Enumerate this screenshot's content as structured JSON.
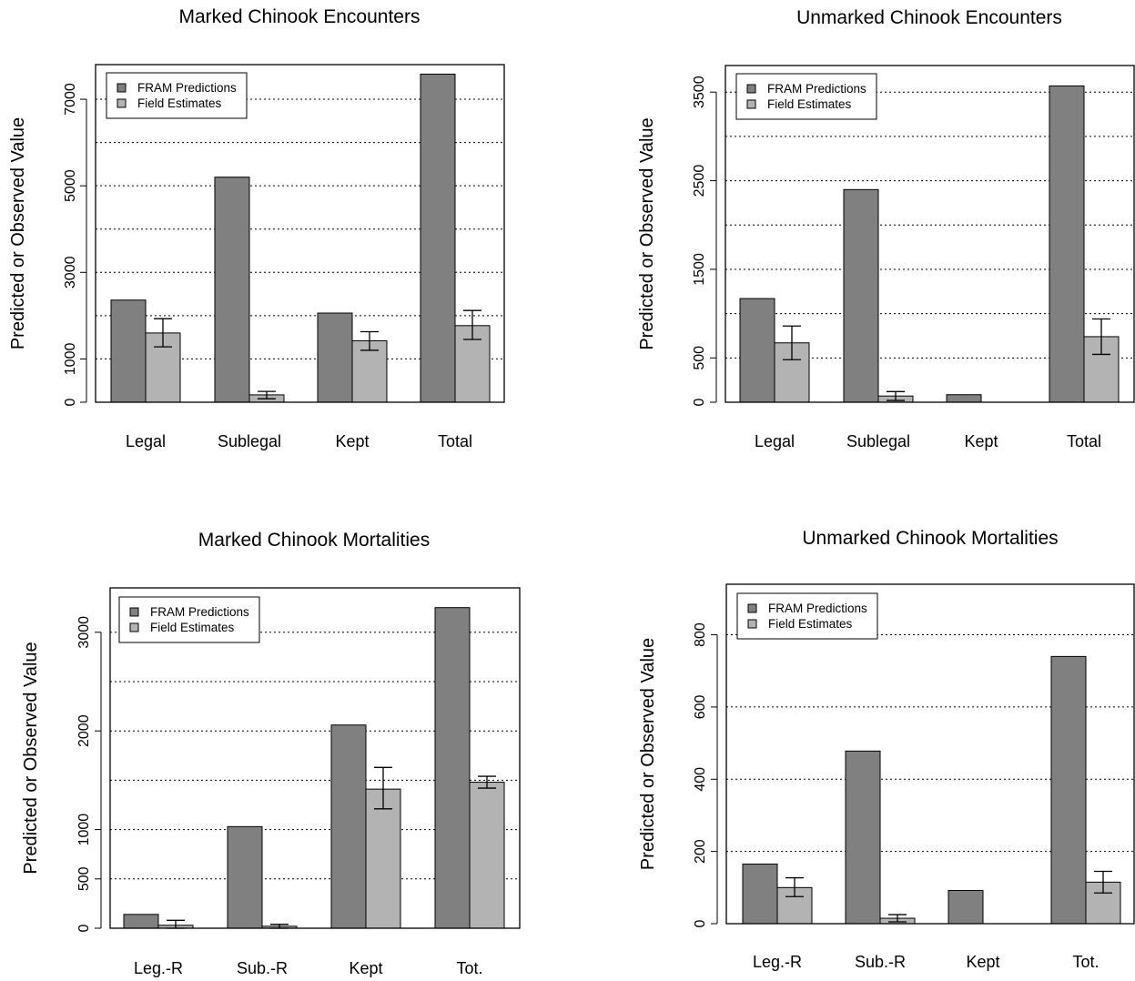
{
  "colors": {
    "fram": "#808080",
    "field": "#b3b3b3",
    "stroke": "#000000",
    "grid": "#000000"
  },
  "chart_data": [
    {
      "type": "bar",
      "title": "Marked Chinook Encounters",
      "ylabel": "Predicted or Observed Value",
      "categories": [
        "Legal",
        "Sublegal",
        "Kept",
        "Total"
      ],
      "ylim": [
        0,
        7800
      ],
      "yticks": [
        0,
        1000,
        3000,
        5000,
        7000
      ],
      "ytick_labels": [
        "0",
        "1000",
        "3000",
        "5000",
        "7000"
      ],
      "grid_lines": [
        1000,
        2000,
        3000,
        4000,
        5000,
        6000,
        7000
      ],
      "legend": {
        "position": "top-left",
        "entries": [
          "FRAM Predictions",
          "Field Estimates"
        ]
      },
      "series": [
        {
          "name": "FRAM Predictions",
          "values": [
            2360,
            5200,
            2060,
            7580
          ]
        },
        {
          "name": "Field Estimates",
          "values": [
            1600,
            170,
            1420,
            1770
          ],
          "error_low": [
            1280,
            80,
            1200,
            1450
          ],
          "error_high": [
            1930,
            250,
            1630,
            2120
          ]
        }
      ]
    },
    {
      "type": "bar",
      "title": "Unmarked Chinook Encounters",
      "ylabel": "Predicted or Observed Value",
      "categories": [
        "Legal",
        "Sublegal",
        "Kept",
        "Total"
      ],
      "ylim": [
        0,
        3800
      ],
      "yticks": [
        0,
        500,
        1500,
        2500,
        3500
      ],
      "ytick_labels": [
        "0",
        "500",
        "1500",
        "2500",
        "3500"
      ],
      "grid_lines": [
        500,
        1000,
        1500,
        2000,
        2500,
        3000,
        3500
      ],
      "legend": {
        "position": "top-left",
        "entries": [
          "FRAM Predictions",
          "Field Estimates"
        ]
      },
      "series": [
        {
          "name": "FRAM Predictions",
          "values": [
            1170,
            2400,
            85,
            3570
          ]
        },
        {
          "name": "Field Estimates",
          "values": [
            670,
            70,
            0,
            740
          ],
          "error_low": [
            480,
            20,
            null,
            540
          ],
          "error_high": [
            860,
            120,
            null,
            940
          ]
        }
      ]
    },
    {
      "type": "bar",
      "title": "Marked Chinook Mortalities",
      "ylabel": "Predicted or Observed Value",
      "categories": [
        "Leg.-R",
        "Sub.-R",
        "Kept",
        "Tot."
      ],
      "ylim": [
        0,
        3450
      ],
      "yticks": [
        0,
        500,
        1000,
        2000,
        3000
      ],
      "ytick_labels": [
        "0",
        "500",
        "1000",
        "2000",
        "3000"
      ],
      "grid_lines": [
        500,
        1000,
        1500,
        2000,
        2500,
        3000
      ],
      "legend": {
        "position": "top-left",
        "entries": [
          "FRAM Predictions",
          "Field Estimates"
        ]
      },
      "series": [
        {
          "name": "FRAM Predictions",
          "values": [
            140,
            1030,
            2060,
            3250
          ]
        },
        {
          "name": "Field Estimates",
          "values": [
            30,
            20,
            1410,
            1480
          ],
          "error_low": [
            0,
            0,
            1210,
            1420
          ],
          "error_high": [
            80,
            40,
            1630,
            1540
          ]
        }
      ]
    },
    {
      "type": "bar",
      "title": "Unmarked Chinook Mortalities",
      "ylabel": "Predicted or Observed Value",
      "categories": [
        "Leg.-R",
        "Sub.-R",
        "Kept",
        "Tot."
      ],
      "ylim": [
        0,
        940
      ],
      "yticks": [
        0,
        200,
        400,
        600,
        800
      ],
      "ytick_labels": [
        "0",
        "200",
        "400",
        "600",
        "800"
      ],
      "grid_lines": [
        200,
        400,
        600,
        800
      ],
      "legend": {
        "position": "top-left",
        "entries": [
          "FRAM Predictions",
          "Field Estimates"
        ]
      },
      "series": [
        {
          "name": "FRAM Predictions",
          "values": [
            165,
            478,
            92,
            740
          ]
        },
        {
          "name": "Field Estimates",
          "values": [
            100,
            15,
            0,
            115
          ],
          "error_low": [
            75,
            5,
            null,
            85
          ],
          "error_high": [
            127,
            25,
            null,
            145
          ]
        }
      ]
    }
  ]
}
